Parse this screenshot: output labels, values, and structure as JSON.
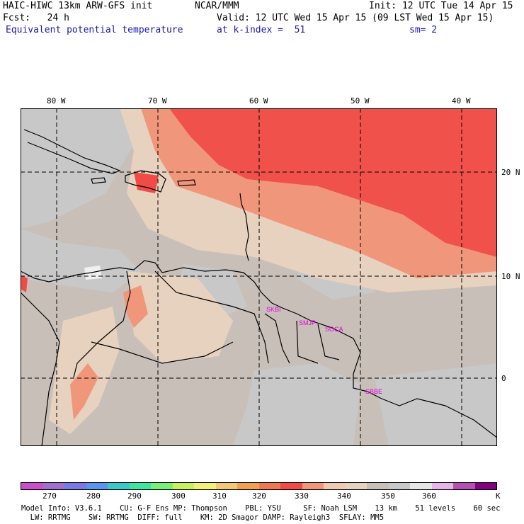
{
  "header": {
    "model_title": "HAIC-HIWC 13km ARW-GFS init",
    "org": "NCAR/MMM",
    "init": "Init: 12 UTC Tue 14 Apr 15",
    "fcst": "Fcst:   24 h",
    "valid": "Valid: 12 UTC Wed 15 Apr 15 (09 LST Wed 15 Apr 15)",
    "field": "Equivalent potential temperature",
    "level": "at k-index =  51",
    "smoothing": "sm= 2"
  },
  "axes": {
    "lon_labels": [
      "80 W",
      "70 W",
      "60 W",
      "50 W",
      "40 W"
    ],
    "lat_labels": [
      "20 N",
      "10 N",
      "0"
    ]
  },
  "stations": [
    "SKBI",
    "SMJP",
    "SOCA",
    "SBBE"
  ],
  "colorbar": {
    "labels": [
      "270",
      "280",
      "290",
      "300",
      "310",
      "320",
      "330",
      "340",
      "350",
      "360",
      "K"
    ],
    "colors": [
      "#c850c8",
      "#a070d0",
      "#7878e6",
      "#5a96f0",
      "#3cc8c8",
      "#3ce6a0",
      "#78f078",
      "#c8f05a",
      "#f0f078",
      "#f0c878",
      "#f0a050",
      "#f07850",
      "#f04b46",
      "#f0967a",
      "#f0c8b4",
      "#e6d2be",
      "#c8c0b8",
      "#c8c8c8",
      "#e6e6e6",
      "#e6b4e6",
      "#b450b4",
      "#820082"
    ]
  },
  "footer": {
    "line1": "Model Info: V3.6.1    CU: G-F Ens MP: Thompson    PBL: YSU     SF: Noah LSM    13 km    51 levels    60 sec",
    "line2": "  LW: RRTMG    SW: RRTMG  DIFF: full    KM: 2D Smagor DAMP: Rayleigh3  SFLAY: MM5"
  }
}
